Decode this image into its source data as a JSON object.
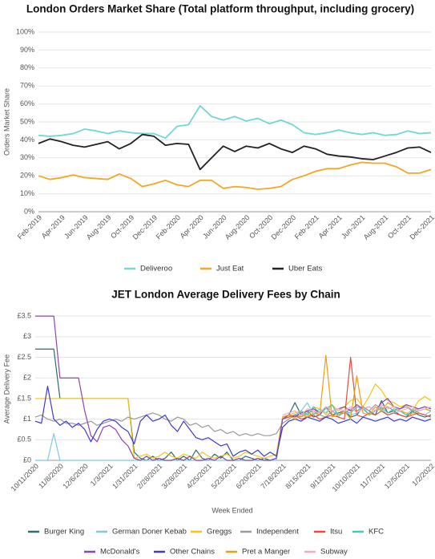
{
  "chart_data": [
    {
      "type": "line",
      "title": "London Orders Market Share (Total platform throughput, including grocery)",
      "ylabel": "Orders Market Share",
      "categories": [
        "Feb-2019",
        null,
        "Apr-2019",
        null,
        "Jun-2019",
        null,
        "Aug-2019",
        null,
        "Oct-2019",
        null,
        "Dec-2019",
        null,
        "Feb-2020",
        null,
        "Apr-2020",
        null,
        "Jun-2020",
        null,
        "Aug-2020",
        null,
        "Oct-2020",
        null,
        "Dec-2020",
        null,
        "Feb-2021",
        null,
        "Apr-2021",
        null,
        "Jun-2021",
        null,
        "Aug-2021",
        null,
        "Oct-2021",
        null,
        "Dec-2021"
      ],
      "series": [
        {
          "name": "Deliveroo",
          "color": "#72d8d2",
          "values": [
            42.5,
            42,
            42.5,
            43.5,
            46,
            45,
            43.5,
            45,
            44,
            43.5,
            43.5,
            41,
            47.5,
            48.5,
            59,
            53,
            51,
            53,
            50.5,
            52,
            49,
            51,
            48.5,
            44,
            43,
            44,
            45.5,
            44,
            43,
            44,
            42.5,
            43,
            45,
            43.5,
            44
          ]
        },
        {
          "name": "Just Eat",
          "color": "#f5a623",
          "values": [
            20,
            18,
            19,
            20.5,
            19,
            18.5,
            18,
            21,
            18.5,
            14,
            15.5,
            17.5,
            15,
            14,
            17.5,
            17.5,
            13,
            14,
            13.5,
            12.5,
            13,
            14,
            18,
            20,
            22.5,
            24,
            24,
            26,
            27.5,
            27,
            27,
            25,
            21.5,
            21.5,
            23.5
          ]
        },
        {
          "name": "Uber Eats",
          "color": "#222222",
          "values": [
            38,
            40.5,
            39,
            37,
            36,
            37.5,
            39,
            35,
            38,
            43,
            42,
            37,
            38,
            37.5,
            23.5,
            30,
            36.5,
            33.5,
            36.5,
            35.5,
            38,
            35,
            33,
            36.5,
            35,
            32,
            31,
            30.5,
            29.5,
            29,
            31,
            33,
            35.5,
            36,
            33
          ]
        }
      ],
      "ylim": [
        0,
        100
      ],
      "yticks": [
        {
          "value": 0,
          "label": "0%"
        },
        {
          "value": 10,
          "label": "10%"
        },
        {
          "value": 20,
          "label": "20%"
        },
        {
          "value": 30,
          "label": "30%"
        },
        {
          "value": 40,
          "label": "40%"
        },
        {
          "value": 50,
          "label": "50%"
        },
        {
          "value": 60,
          "label": "60%"
        },
        {
          "value": 70,
          "label": "70%"
        },
        {
          "value": 80,
          "label": "80%"
        },
        {
          "value": 90,
          "label": "90%"
        },
        {
          "value": 100,
          "label": "100%"
        }
      ],
      "grid": true,
      "legend": "bottom"
    },
    {
      "type": "line",
      "title": "JET London Average Delivery Fees by Chain",
      "xlabel": "Week Ended",
      "ylabel": "Average Delivery Fee",
      "categories": [
        "10/11/2020",
        null,
        null,
        null,
        "11/8/2020",
        null,
        null,
        null,
        "12/6/2020",
        null,
        null,
        null,
        "1/3/2021",
        null,
        null,
        null,
        "1/31/2021",
        null,
        null,
        null,
        "2/28/2021",
        null,
        null,
        null,
        "3/28/2021",
        null,
        null,
        null,
        "4/25/2021",
        null,
        null,
        null,
        "5/23/2021",
        null,
        null,
        null,
        "6/20/2021",
        null,
        null,
        null,
        "7/18/2021",
        null,
        null,
        null,
        "8/15/2021",
        null,
        null,
        null,
        "9/12/2021",
        null,
        null,
        null,
        "10/10/2021",
        null,
        null,
        null,
        "11/7/2021",
        null,
        null,
        null,
        "12/5/2021",
        null,
        null,
        null,
        "1/2/2022"
      ],
      "series": [
        {
          "name": "Burger King",
          "color": "#2e6b73",
          "values": [
            2.7,
            2.7,
            2.7,
            2.7,
            1.5,
            1.5,
            1.5,
            1.5,
            1.5,
            1.5,
            1.5,
            1.5,
            1.5,
            1.5,
            1.5,
            1.5,
            0.2,
            0.05,
            0,
            0.1,
            0,
            0.05,
            0.2,
            0,
            0.1,
            0,
            0.25,
            0.05,
            0,
            0.15,
            0.05,
            0.2,
            0,
            0,
            0.1,
            0.05,
            0,
            0.05,
            0,
            0.05,
            1.05,
            1.1,
            1.4,
            1.1,
            1.2,
            1.05,
            1.1,
            1.3,
            1.1,
            1.15,
            1.2,
            1.05,
            1.1,
            1.3,
            1.2,
            1.1,
            1.45,
            1.15,
            1.2,
            1.1,
            1.05,
            1.2,
            1.1,
            1.05,
            1.1
          ]
        },
        {
          "name": "German Doner Kebab",
          "color": "#7ec8e3",
          "values": [
            0,
            0,
            0,
            0.65,
            0,
            0,
            0,
            0,
            0,
            0,
            0,
            0,
            0,
            0,
            0,
            0,
            0,
            0,
            0,
            0,
            0,
            0,
            0,
            0,
            0,
            0,
            0,
            0,
            0,
            0,
            0,
            0,
            0,
            0,
            0,
            0,
            0,
            0,
            0,
            0,
            1.0,
            1.05,
            1.1,
            1.2,
            1.4,
            1.1,
            1.25,
            1.15,
            1.35,
            1.05,
            1.2,
            1.1,
            1.15,
            1.3,
            1.1,
            1.2,
            1.25,
            1.1,
            1.15,
            1.2,
            1.1,
            1.25,
            1.15,
            1.1,
            1.2
          ]
        },
        {
          "name": "Greggs",
          "color": "#f5c518",
          "values": [
            1.5,
            1.5,
            1.5,
            1.5,
            1.5,
            1.5,
            1.5,
            1.5,
            1.5,
            1.5,
            1.5,
            1.5,
            1.5,
            1.5,
            1.5,
            1.5,
            0.05,
            0.1,
            0.15,
            0.05,
            0.1,
            0.2,
            0.1,
            0.05,
            0.15,
            0.1,
            0.05,
            0.2,
            0.1,
            0.05,
            0.1,
            0.15,
            0.05,
            0.1,
            0.2,
            0.15,
            0.1,
            0.05,
            0.1,
            0.15,
            1.05,
            1.1,
            1.15,
            1.2,
            1.05,
            1.3,
            1.25,
            1.1,
            1.35,
            1.2,
            1.3,
            1.45,
            1.5,
            1.3,
            1.55,
            1.85,
            1.7,
            1.45,
            1.4,
            1.3,
            1.35,
            1.2,
            1.45,
            1.55,
            1.45
          ]
        },
        {
          "name": "Independent",
          "color": "#9a9a9a",
          "values": [
            1.05,
            1.1,
            1.0,
            0.95,
            1.0,
            0.9,
            0.9,
            0.85,
            0.9,
            0.95,
            0.85,
            0.9,
            0.95,
            1.0,
            0.95,
            1.05,
            1.0,
            1.05,
            1.1,
            1.15,
            1.1,
            1.0,
            0.95,
            1.05,
            1.0,
            0.85,
            0.9,
            0.8,
            0.85,
            0.7,
            0.75,
            0.65,
            0.7,
            0.6,
            0.65,
            0.6,
            0.65,
            0.6,
            0.6,
            0.65,
            0.9,
            1.0,
            1.1,
            1.05,
            1.15,
            1.2,
            1.1,
            1.05,
            1.2,
            1.1,
            1.15,
            1.25,
            1.2,
            1.3,
            1.2,
            1.35,
            1.25,
            1.3,
            1.2,
            1.25,
            1.3,
            1.2,
            1.25,
            1.3,
            1.25
          ]
        },
        {
          "name": "Itsu",
          "color": "#e74c3c",
          "values": [
            null,
            null,
            null,
            null,
            null,
            null,
            null,
            null,
            null,
            null,
            null,
            null,
            null,
            null,
            null,
            null,
            null,
            null,
            null,
            null,
            null,
            null,
            null,
            null,
            null,
            null,
            null,
            null,
            null,
            null,
            null,
            null,
            null,
            null,
            null,
            null,
            null,
            null,
            null,
            null,
            1.0,
            1.05,
            1.1,
            1.0,
            1.05,
            1.1,
            1.0,
            1.05,
            1.1,
            1.05,
            1.0,
            2.5,
            1.1,
            1.05,
            1.15,
            1.1,
            1.2,
            1.1,
            1.15,
            1.1,
            1.05,
            1.1,
            1.15,
            1.1,
            1.05
          ]
        },
        {
          "name": "KFC",
          "color": "#48c9b0",
          "values": [
            null,
            null,
            null,
            null,
            null,
            null,
            null,
            null,
            null,
            null,
            null,
            null,
            null,
            null,
            null,
            null,
            null,
            null,
            null,
            null,
            null,
            null,
            null,
            null,
            null,
            null,
            null,
            null,
            null,
            null,
            null,
            null,
            null,
            null,
            null,
            null,
            null,
            null,
            null,
            null,
            1.0,
            1.1,
            1.05,
            1.2,
            1.1,
            1.3,
            1.15,
            1.25,
            1.35,
            1.1,
            1.2,
            1.15,
            1.3,
            1.25,
            1.1,
            1.2,
            1.3,
            1.15,
            1.25,
            1.2,
            1.1,
            1.15,
            1.2,
            1.25,
            1.2
          ]
        },
        {
          "name": "McDonald's",
          "color": "#8e44ad",
          "values": [
            3.5,
            3.5,
            3.5,
            3.5,
            2.0,
            2.0,
            2.0,
            2.0,
            1.2,
            0.6,
            0.45,
            0.8,
            0.85,
            0.75,
            0.5,
            0.35,
            0.05,
            0,
            0.1,
            0,
            0.05,
            0,
            0,
            0.05,
            0,
            0.1,
            0,
            0,
            0.05,
            0,
            0.1,
            0,
            0,
            0.05,
            0,
            0,
            0.05,
            0,
            0,
            0.05,
            1.0,
            1.1,
            1.05,
            1.15,
            1.2,
            1.25,
            1.15,
            1.3,
            1.2,
            1.25,
            1.3,
            1.2,
            1.35,
            1.25,
            1.3,
            1.2,
            1.4,
            1.5,
            1.3,
            1.25,
            1.35,
            1.3,
            1.25,
            1.3,
            1.25
          ]
        },
        {
          "name": "Other Chains",
          "color": "#3b3bd6",
          "values": [
            0.95,
            0.9,
            1.8,
            1.0,
            0.85,
            0.95,
            0.8,
            0.9,
            0.75,
            0.45,
            0.75,
            0.95,
            1.0,
            0.95,
            0.8,
            0.7,
            0.4,
            0.95,
            1.1,
            0.95,
            1.0,
            1.1,
            0.85,
            0.7,
            0.95,
            0.75,
            0.55,
            0.5,
            0.55,
            0.45,
            0.35,
            0.4,
            0.1,
            0.2,
            0.25,
            0.15,
            0.25,
            0.1,
            0.2,
            0.1,
            0.8,
            0.95,
            1.0,
            0.95,
            1.05,
            1.0,
            0.95,
            1.05,
            1.0,
            0.9,
            0.95,
            1.0,
            0.9,
            1.05,
            1.0,
            0.95,
            1.0,
            1.05,
            0.95,
            1.0,
            0.95,
            1.05,
            1.0,
            0.95,
            1.0
          ]
        },
        {
          "name": "Pret a Manger",
          "color": "#f39c12",
          "values": [
            null,
            null,
            null,
            null,
            null,
            null,
            null,
            null,
            null,
            null,
            null,
            null,
            null,
            null,
            null,
            null,
            null,
            null,
            null,
            null,
            null,
            null,
            null,
            null,
            null,
            null,
            null,
            null,
            null,
            null,
            null,
            null,
            null,
            null,
            null,
            null,
            null,
            null,
            null,
            null,
            1.05,
            1.1,
            1.0,
            1.1,
            1.05,
            1.15,
            1.1,
            2.55,
            1.05,
            1.1,
            1.2,
            1.0,
            2.05,
            1.15,
            1.1,
            1.3,
            1.2,
            1.4,
            1.3,
            1.2,
            1.15,
            1.1,
            1.2,
            1.25,
            1.2
          ]
        },
        {
          "name": "Subway",
          "color": "#f7a8c8",
          "values": [
            null,
            null,
            null,
            null,
            null,
            null,
            null,
            null,
            null,
            null,
            null,
            null,
            null,
            null,
            null,
            null,
            null,
            null,
            null,
            null,
            null,
            null,
            null,
            null,
            null,
            null,
            null,
            null,
            null,
            null,
            null,
            null,
            null,
            null,
            null,
            null,
            null,
            null,
            null,
            null,
            1.1,
            1.15,
            1.2,
            1.1,
            1.25,
            1.2,
            1.15,
            1.3,
            1.2,
            1.25,
            1.2,
            1.3,
            1.15,
            1.25,
            1.3,
            1.2,
            1.35,
            1.25,
            1.3,
            1.2,
            1.25,
            1.3,
            1.2,
            1.25,
            1.3
          ]
        }
      ],
      "ylim": [
        0,
        3.6
      ],
      "yticks": [
        {
          "value": 0,
          "label": "£0"
        },
        {
          "value": 0.5,
          "label": "£0.5"
        },
        {
          "value": 1,
          "label": "£1"
        },
        {
          "value": 1.5,
          "label": "£1.5"
        },
        {
          "value": 2,
          "label": "£2"
        },
        {
          "value": 2.5,
          "label": "£2.5"
        },
        {
          "value": 3,
          "label": "£3"
        },
        {
          "value": 3.5,
          "label": "£3.5"
        }
      ],
      "grid": true,
      "legend": "bottom"
    }
  ]
}
